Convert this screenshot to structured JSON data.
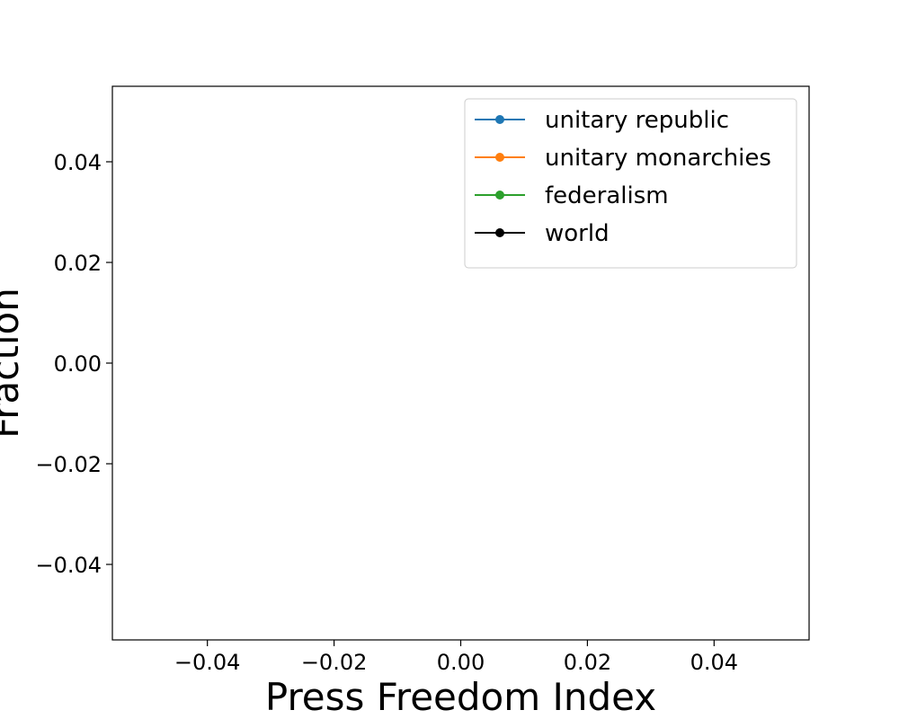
{
  "chart_data": {
    "type": "line",
    "title": "",
    "xlabel": "Press Freedom Index",
    "ylabel": "Fraction",
    "xlim": [
      -0.055,
      0.055
    ],
    "ylim": [
      -0.055,
      0.055
    ],
    "x_ticks": [
      -0.04,
      -0.02,
      0.0,
      0.02,
      0.04
    ],
    "x_tick_labels": [
      "−0.04",
      "−0.02",
      "0.00",
      "0.02",
      "0.04"
    ],
    "y_ticks": [
      -0.04,
      -0.02,
      0.0,
      0.02,
      0.04
    ],
    "y_tick_labels": [
      "−0.04",
      "−0.02",
      "0.00",
      "0.02",
      "0.04"
    ],
    "grid": false,
    "legend_position": "top-right",
    "series": [
      {
        "name": "unitary republic",
        "color": "#1f77b4",
        "marker": "circle",
        "x": [],
        "y": []
      },
      {
        "name": "unitary monarchies",
        "color": "#ff7f0e",
        "marker": "circle",
        "x": [],
        "y": []
      },
      {
        "name": "federalism",
        "color": "#2ca02c",
        "marker": "circle",
        "x": [],
        "y": []
      },
      {
        "name": "world",
        "color": "#000000",
        "marker": "circle",
        "x": [],
        "y": []
      }
    ]
  }
}
